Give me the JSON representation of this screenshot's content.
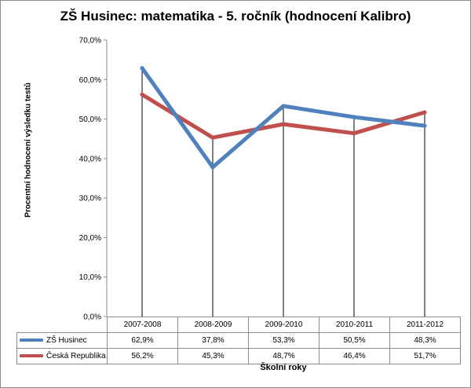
{
  "chart_data": {
    "type": "line",
    "title": "ZŠ Husinec: matematika - 5. ročník (hodnocení Kalibro)",
    "xlabel": "Školní roky",
    "ylabel": "Procentní hodnocení výsledku testů",
    "ylim": [
      0,
      70
    ],
    "y_ticks": [
      "0,0%",
      "10,0%",
      "20,0%",
      "30,0%",
      "40,0%",
      "50,0%",
      "60,0%",
      "70,0%"
    ],
    "categories": [
      "2007-2008",
      "2008-2009",
      "2009-2010",
      "2010-2011",
      "2011-2012"
    ],
    "grid": "vertical",
    "legend": "data-table",
    "series": [
      {
        "name": "ZŠ Husinec",
        "color": "#4f81bd",
        "values": [
          62.9,
          37.8,
          53.3,
          50.5,
          48.3
        ],
        "labels": [
          "62,9%",
          "37,8%",
          "53,3%",
          "50,5%",
          "48,3%"
        ]
      },
      {
        "name": "Česká Republika",
        "color": "#c0504d",
        "values": [
          56.2,
          45.3,
          48.7,
          46.4,
          51.7
        ],
        "labels": [
          "56,2%",
          "45,3%",
          "48,7%",
          "46,4%",
          "51,7%"
        ]
      }
    ]
  }
}
